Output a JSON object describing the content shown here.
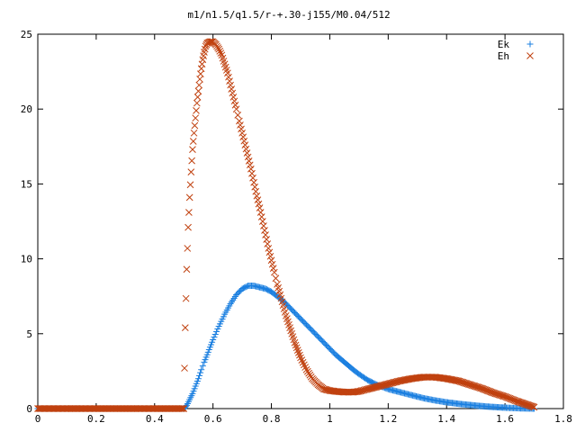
{
  "chart_data": {
    "type": "scatter",
    "title": "m1/n1.5/q1.5/r-+.30-j155/M0.04/512",
    "xlabel": "",
    "ylabel": "",
    "xlim": [
      0,
      1.8
    ],
    "ylim": [
      0,
      25
    ],
    "x_ticks": [
      "0",
      "0.2",
      "0.4",
      "0.6",
      "0.8",
      "1",
      "1.2",
      "1.4",
      "1.6",
      "1.8"
    ],
    "y_ticks": [
      "0",
      "5",
      "10",
      "15",
      "20",
      "25"
    ],
    "grid": false,
    "legend_position": "top-right",
    "series": [
      {
        "name": "Ek",
        "marker": "+",
        "color": "#1a7fe0",
        "points": [
          [
            0.0,
            0
          ],
          [
            0.05,
            0
          ],
          [
            0.1,
            0
          ],
          [
            0.15,
            0
          ],
          [
            0.2,
            0
          ],
          [
            0.25,
            0
          ],
          [
            0.3,
            0
          ],
          [
            0.35,
            0
          ],
          [
            0.4,
            0
          ],
          [
            0.45,
            0
          ],
          [
            0.5,
            0
          ],
          [
            0.51,
            0.2
          ],
          [
            0.52,
            0.6
          ],
          [
            0.53,
            1.0
          ],
          [
            0.54,
            1.5
          ],
          [
            0.55,
            2.0
          ],
          [
            0.56,
            2.6
          ],
          [
            0.57,
            3.1
          ],
          [
            0.58,
            3.6
          ],
          [
            0.59,
            4.1
          ],
          [
            0.6,
            4.6
          ],
          [
            0.62,
            5.5
          ],
          [
            0.64,
            6.3
          ],
          [
            0.66,
            7.0
          ],
          [
            0.68,
            7.6
          ],
          [
            0.7,
            8.0
          ],
          [
            0.72,
            8.2
          ],
          [
            0.74,
            8.2
          ],
          [
            0.76,
            8.1
          ],
          [
            0.78,
            8.0
          ],
          [
            0.8,
            7.8
          ],
          [
            0.82,
            7.5
          ],
          [
            0.84,
            7.2
          ],
          [
            0.86,
            6.8
          ],
          [
            0.88,
            6.4
          ],
          [
            0.9,
            6.0
          ],
          [
            0.92,
            5.6
          ],
          [
            0.94,
            5.2
          ],
          [
            0.96,
            4.8
          ],
          [
            0.98,
            4.4
          ],
          [
            1.0,
            4.0
          ],
          [
            1.02,
            3.6
          ],
          [
            1.05,
            3.1
          ],
          [
            1.08,
            2.6
          ],
          [
            1.1,
            2.3
          ],
          [
            1.13,
            1.9
          ],
          [
            1.16,
            1.6
          ],
          [
            1.2,
            1.3
          ],
          [
            1.24,
            1.1
          ],
          [
            1.28,
            0.9
          ],
          [
            1.32,
            0.7
          ],
          [
            1.36,
            0.55
          ],
          [
            1.4,
            0.42
          ],
          [
            1.45,
            0.3
          ],
          [
            1.5,
            0.2
          ],
          [
            1.55,
            0.12
          ],
          [
            1.6,
            0.06
          ],
          [
            1.65,
            0.02
          ],
          [
            1.7,
            0
          ]
        ]
      },
      {
        "name": "Eh",
        "marker": "x",
        "color": "#c0410f",
        "points": [
          [
            0.0,
            0
          ],
          [
            0.05,
            0
          ],
          [
            0.1,
            0
          ],
          [
            0.15,
            0
          ],
          [
            0.2,
            0
          ],
          [
            0.25,
            0
          ],
          [
            0.3,
            0
          ],
          [
            0.35,
            0
          ],
          [
            0.4,
            0
          ],
          [
            0.45,
            0
          ],
          [
            0.5,
            0
          ],
          [
            0.505,
            5.4
          ],
          [
            0.51,
            9.3
          ],
          [
            0.515,
            12.1
          ],
          [
            0.52,
            14.1
          ],
          [
            0.525,
            15.8
          ],
          [
            0.53,
            17.3
          ],
          [
            0.535,
            18.4
          ],
          [
            0.54,
            19.4
          ],
          [
            0.545,
            20.4
          ],
          [
            0.55,
            21.2
          ],
          [
            0.555,
            22.0
          ],
          [
            0.56,
            22.7
          ],
          [
            0.565,
            23.3
          ],
          [
            0.57,
            23.8
          ],
          [
            0.575,
            24.2
          ],
          [
            0.58,
            24.4
          ],
          [
            0.59,
            24.5
          ],
          [
            0.6,
            24.5
          ],
          [
            0.61,
            24.3
          ],
          [
            0.62,
            24.0
          ],
          [
            0.63,
            23.6
          ],
          [
            0.64,
            23.0
          ],
          [
            0.65,
            22.4
          ],
          [
            0.66,
            21.6
          ],
          [
            0.67,
            20.8
          ],
          [
            0.68,
            20.0
          ],
          [
            0.69,
            19.2
          ],
          [
            0.7,
            18.4
          ],
          [
            0.71,
            17.6
          ],
          [
            0.72,
            16.8
          ],
          [
            0.73,
            16.0
          ],
          [
            0.74,
            15.1
          ],
          [
            0.75,
            14.2
          ],
          [
            0.76,
            13.4
          ],
          [
            0.77,
            12.5
          ],
          [
            0.78,
            11.6
          ],
          [
            0.79,
            10.7
          ],
          [
            0.8,
            9.9
          ],
          [
            0.81,
            9.1
          ],
          [
            0.82,
            8.3
          ],
          [
            0.83,
            7.6
          ],
          [
            0.84,
            6.9
          ],
          [
            0.85,
            6.2
          ],
          [
            0.86,
            5.6
          ],
          [
            0.87,
            5.0
          ],
          [
            0.88,
            4.4
          ],
          [
            0.89,
            3.9
          ],
          [
            0.9,
            3.4
          ],
          [
            0.92,
            2.6
          ],
          [
            0.94,
            2.0
          ],
          [
            0.96,
            1.6
          ],
          [
            0.98,
            1.3
          ],
          [
            1.0,
            1.2
          ],
          [
            1.02,
            1.15
          ],
          [
            1.05,
            1.1
          ],
          [
            1.08,
            1.1
          ],
          [
            1.1,
            1.15
          ],
          [
            1.13,
            1.3
          ],
          [
            1.16,
            1.45
          ],
          [
            1.2,
            1.65
          ],
          [
            1.24,
            1.85
          ],
          [
            1.28,
            2.0
          ],
          [
            1.32,
            2.1
          ],
          [
            1.36,
            2.1
          ],
          [
            1.4,
            2.0
          ],
          [
            1.44,
            1.85
          ],
          [
            1.48,
            1.6
          ],
          [
            1.52,
            1.35
          ],
          [
            1.56,
            1.05
          ],
          [
            1.6,
            0.8
          ],
          [
            1.64,
            0.5
          ],
          [
            1.67,
            0.3
          ],
          [
            1.7,
            0.1
          ]
        ]
      }
    ]
  }
}
